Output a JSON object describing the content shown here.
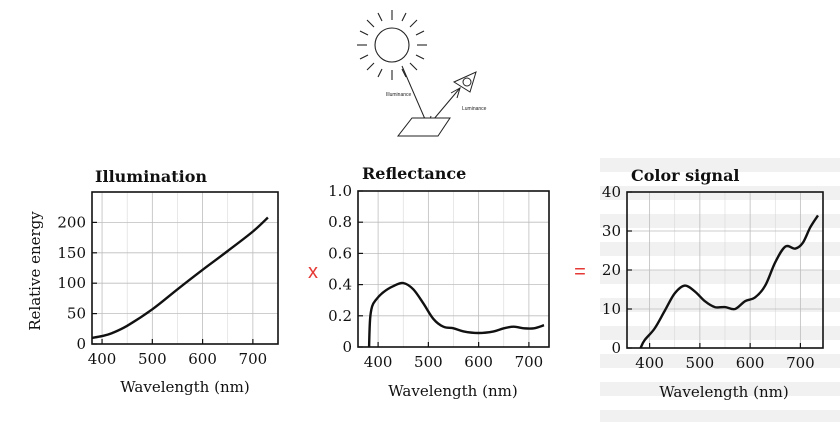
{
  "diagram": {
    "illuminance_label": "Illuminance",
    "luminance_label": "Luminance"
  },
  "operators": {
    "multiply": "x",
    "equals": "="
  },
  "chart_data": [
    {
      "type": "line",
      "title": "Illumination",
      "xlabel": "Wavelength (nm)",
      "ylabel": "Relative energy",
      "xticks": [
        "400",
        "500",
        "600",
        "700"
      ],
      "yticks": [
        "0",
        "50",
        "100",
        "150",
        "200"
      ],
      "xlim": [
        380,
        750
      ],
      "ylim": [
        0,
        250
      ],
      "grid": true,
      "series": [
        {
          "x": [
            380,
            400,
            420,
            450,
            500,
            550,
            600,
            650,
            700,
            730
          ],
          "y": [
            10,
            13,
            18,
            30,
            57,
            90,
            122,
            153,
            185,
            208
          ]
        }
      ]
    },
    {
      "type": "line",
      "title": "Reflectance",
      "xlabel": "Wavelength (nm)",
      "ylabel": "",
      "xticks": [
        "400",
        "500",
        "600",
        "700"
      ],
      "yticks": [
        "0",
        "0.2",
        "0.4",
        "0.6",
        "0.8",
        "1.0"
      ],
      "xlim": [
        360,
        740
      ],
      "ylim": [
        0,
        1.0
      ],
      "grid": true,
      "series": [
        {
          "x": [
            382,
            384,
            388,
            395,
            410,
            430,
            450,
            470,
            490,
            510,
            530,
            550,
            570,
            600,
            630,
            650,
            670,
            690,
            710,
            730
          ],
          "y": [
            0.0,
            0.18,
            0.26,
            0.3,
            0.35,
            0.39,
            0.41,
            0.37,
            0.28,
            0.18,
            0.13,
            0.12,
            0.1,
            0.09,
            0.1,
            0.12,
            0.13,
            0.12,
            0.12,
            0.14
          ]
        }
      ]
    },
    {
      "type": "line",
      "title": "Color signal",
      "xlabel": "Wavelength (nm)",
      "ylabel": "",
      "xticks": [
        "400",
        "500",
        "600",
        "700"
      ],
      "yticks": [
        "0",
        "10",
        "20",
        "30",
        "40"
      ],
      "xlim": [
        355,
        745
      ],
      "ylim": [
        0,
        40
      ],
      "grid": true,
      "series": [
        {
          "x": [
            382,
            390,
            410,
            430,
            450,
            470,
            490,
            510,
            530,
            550,
            570,
            590,
            610,
            630,
            650,
            670,
            690,
            705,
            720,
            735
          ],
          "y": [
            0,
            2,
            5,
            9.5,
            14,
            16,
            14.5,
            12,
            10.5,
            10.5,
            10,
            12,
            13,
            16,
            22,
            26,
            25.5,
            27,
            31,
            34
          ]
        }
      ]
    }
  ]
}
